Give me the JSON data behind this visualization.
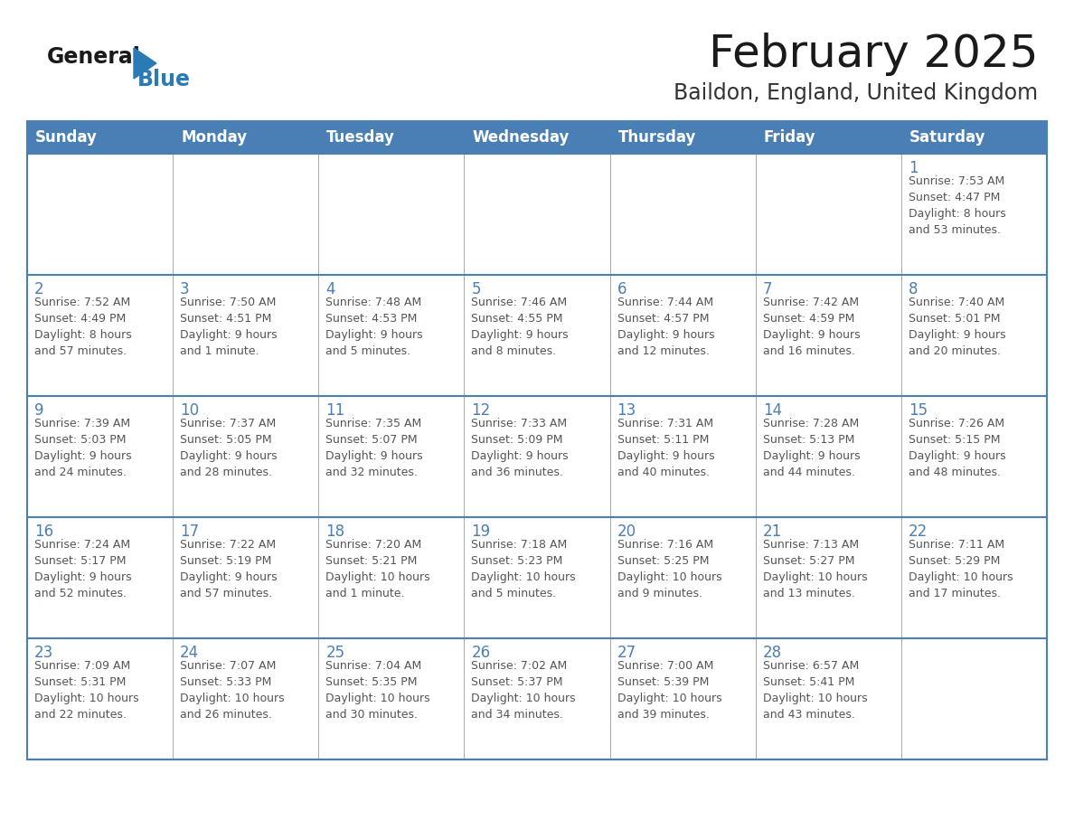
{
  "title": "February 2025",
  "subtitle": "Baildon, England, United Kingdom",
  "days_of_week": [
    "Sunday",
    "Monday",
    "Tuesday",
    "Wednesday",
    "Thursday",
    "Friday",
    "Saturday"
  ],
  "header_bg": "#4a7fb5",
  "header_text": "#ffffff",
  "cell_bg": "#ffffff",
  "cell_border_color": "#4a7fb5",
  "row_separator_color": "#4a7fb5",
  "day_number_color": "#4a7fb5",
  "info_text_color": "#555555",
  "title_color": "#1a1a1a",
  "subtitle_color": "#333333",
  "logo_general_color": "#1a1a1a",
  "logo_blue_color": "#2a7ab5",
  "calendar_data": [
    [
      null,
      null,
      null,
      null,
      null,
      null,
      {
        "day": 1,
        "sunrise": "7:53 AM",
        "sunset": "4:47 PM",
        "daylight_l1": "8 hours",
        "daylight_l2": "and 53 minutes."
      }
    ],
    [
      {
        "day": 2,
        "sunrise": "7:52 AM",
        "sunset": "4:49 PM",
        "daylight_l1": "8 hours",
        "daylight_l2": "and 57 minutes."
      },
      {
        "day": 3,
        "sunrise": "7:50 AM",
        "sunset": "4:51 PM",
        "daylight_l1": "9 hours",
        "daylight_l2": "and 1 minute."
      },
      {
        "day": 4,
        "sunrise": "7:48 AM",
        "sunset": "4:53 PM",
        "daylight_l1": "9 hours",
        "daylight_l2": "and 5 minutes."
      },
      {
        "day": 5,
        "sunrise": "7:46 AM",
        "sunset": "4:55 PM",
        "daylight_l1": "9 hours",
        "daylight_l2": "and 8 minutes."
      },
      {
        "day": 6,
        "sunrise": "7:44 AM",
        "sunset": "4:57 PM",
        "daylight_l1": "9 hours",
        "daylight_l2": "and 12 minutes."
      },
      {
        "day": 7,
        "sunrise": "7:42 AM",
        "sunset": "4:59 PM",
        "daylight_l1": "9 hours",
        "daylight_l2": "and 16 minutes."
      },
      {
        "day": 8,
        "sunrise": "7:40 AM",
        "sunset": "5:01 PM",
        "daylight_l1": "9 hours",
        "daylight_l2": "and 20 minutes."
      }
    ],
    [
      {
        "day": 9,
        "sunrise": "7:39 AM",
        "sunset": "5:03 PM",
        "daylight_l1": "9 hours",
        "daylight_l2": "and 24 minutes."
      },
      {
        "day": 10,
        "sunrise": "7:37 AM",
        "sunset": "5:05 PM",
        "daylight_l1": "9 hours",
        "daylight_l2": "and 28 minutes."
      },
      {
        "day": 11,
        "sunrise": "7:35 AM",
        "sunset": "5:07 PM",
        "daylight_l1": "9 hours",
        "daylight_l2": "and 32 minutes."
      },
      {
        "day": 12,
        "sunrise": "7:33 AM",
        "sunset": "5:09 PM",
        "daylight_l1": "9 hours",
        "daylight_l2": "and 36 minutes."
      },
      {
        "day": 13,
        "sunrise": "7:31 AM",
        "sunset": "5:11 PM",
        "daylight_l1": "9 hours",
        "daylight_l2": "and 40 minutes."
      },
      {
        "day": 14,
        "sunrise": "7:28 AM",
        "sunset": "5:13 PM",
        "daylight_l1": "9 hours",
        "daylight_l2": "and 44 minutes."
      },
      {
        "day": 15,
        "sunrise": "7:26 AM",
        "sunset": "5:15 PM",
        "daylight_l1": "9 hours",
        "daylight_l2": "and 48 minutes."
      }
    ],
    [
      {
        "day": 16,
        "sunrise": "7:24 AM",
        "sunset": "5:17 PM",
        "daylight_l1": "9 hours",
        "daylight_l2": "and 52 minutes."
      },
      {
        "day": 17,
        "sunrise": "7:22 AM",
        "sunset": "5:19 PM",
        "daylight_l1": "9 hours",
        "daylight_l2": "and 57 minutes."
      },
      {
        "day": 18,
        "sunrise": "7:20 AM",
        "sunset": "5:21 PM",
        "daylight_l1": "10 hours",
        "daylight_l2": "and 1 minute."
      },
      {
        "day": 19,
        "sunrise": "7:18 AM",
        "sunset": "5:23 PM",
        "daylight_l1": "10 hours",
        "daylight_l2": "and 5 minutes."
      },
      {
        "day": 20,
        "sunrise": "7:16 AM",
        "sunset": "5:25 PM",
        "daylight_l1": "10 hours",
        "daylight_l2": "and 9 minutes."
      },
      {
        "day": 21,
        "sunrise": "7:13 AM",
        "sunset": "5:27 PM",
        "daylight_l1": "10 hours",
        "daylight_l2": "and 13 minutes."
      },
      {
        "day": 22,
        "sunrise": "7:11 AM",
        "sunset": "5:29 PM",
        "daylight_l1": "10 hours",
        "daylight_l2": "and 17 minutes."
      }
    ],
    [
      {
        "day": 23,
        "sunrise": "7:09 AM",
        "sunset": "5:31 PM",
        "daylight_l1": "10 hours",
        "daylight_l2": "and 22 minutes."
      },
      {
        "day": 24,
        "sunrise": "7:07 AM",
        "sunset": "5:33 PM",
        "daylight_l1": "10 hours",
        "daylight_l2": "and 26 minutes."
      },
      {
        "day": 25,
        "sunrise": "7:04 AM",
        "sunset": "5:35 PM",
        "daylight_l1": "10 hours",
        "daylight_l2": "and 30 minutes."
      },
      {
        "day": 26,
        "sunrise": "7:02 AM",
        "sunset": "5:37 PM",
        "daylight_l1": "10 hours",
        "daylight_l2": "and 34 minutes."
      },
      {
        "day": 27,
        "sunrise": "7:00 AM",
        "sunset": "5:39 PM",
        "daylight_l1": "10 hours",
        "daylight_l2": "and 39 minutes."
      },
      {
        "day": 28,
        "sunrise": "6:57 AM",
        "sunset": "5:41 PM",
        "daylight_l1": "10 hours",
        "daylight_l2": "and 43 minutes."
      },
      null
    ]
  ]
}
